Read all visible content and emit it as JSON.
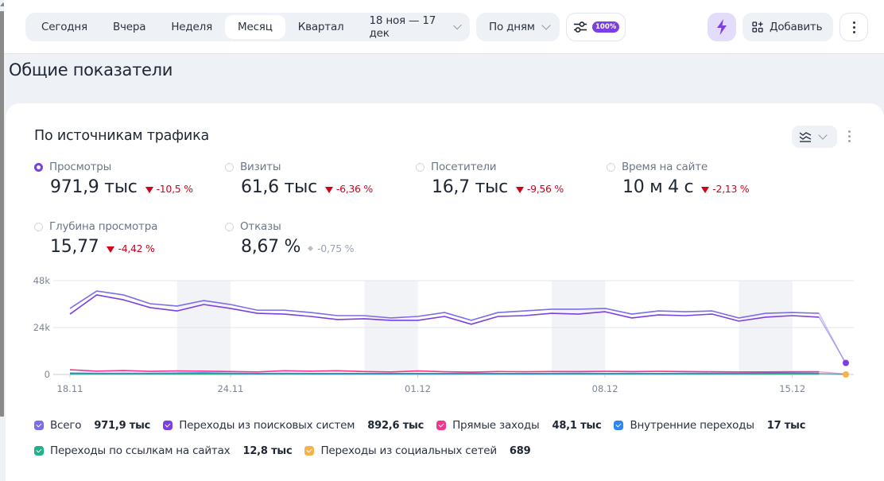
{
  "toolbar": {
    "periods": [
      "Сегодня",
      "Вчера",
      "Неделя",
      "Месяц",
      "Квартал"
    ],
    "active_period": "Месяц",
    "date_range": "18 ноя — 17 дек",
    "grouping": "По дням",
    "sampling_badge": "100%",
    "add_label": "Добавить"
  },
  "section_title": "Общие показатели",
  "card": {
    "title": "По источникам трафика",
    "metrics": [
      {
        "label": "Просмотры",
        "value": "971,9 тыс",
        "delta": "-10,5 %",
        "trend": "down",
        "selected": true
      },
      {
        "label": "Визиты",
        "value": "61,6 тыс",
        "delta": "-6,36 %",
        "trend": "down",
        "selected": false
      },
      {
        "label": "Посетители",
        "value": "16,7 тыс",
        "delta": "-9,56 %",
        "trend": "down",
        "selected": false
      },
      {
        "label": "Время на сайте",
        "value": "10 м 4 с",
        "delta": "-2,13 %",
        "trend": "down",
        "selected": false
      },
      {
        "label": "Глубина просмотра",
        "value": "15,77",
        "delta": "-4,42 %",
        "trend": "down",
        "selected": false
      },
      {
        "label": "Отказы",
        "value": "8,67 %",
        "delta": "-0,75 %",
        "trend": "neutral",
        "selected": false
      }
    ],
    "legend": [
      {
        "label": "Всего",
        "value": "971,9 тыс",
        "color": "#7a6fe6"
      },
      {
        "label": "Переходы из поисковых систем",
        "value": "892,6 тыс",
        "color": "#7b3fe4"
      },
      {
        "label": "Прямые заходы",
        "value": "48,1 тыс",
        "color": "#f0368f"
      },
      {
        "label": "Внутренние переходы",
        "value": "17 тыс",
        "color": "#2f86f0"
      },
      {
        "label": "Переходы по ссылкам на сайтах",
        "value": "12,8 тыс",
        "color": "#1fb28a"
      },
      {
        "label": "Переходы из социальных сетей",
        "value": "689",
        "color": "#f6b24a"
      }
    ]
  },
  "chart_data": {
    "type": "line",
    "title": "По источникам трафика",
    "xlabel": "",
    "ylabel": "Просмотры",
    "ylim": [
      0,
      48000
    ],
    "yticks": [
      0,
      24000,
      48000
    ],
    "ytick_labels": [
      "0",
      "24k",
      "48k"
    ],
    "x": [
      "18.11",
      "19.11",
      "20.11",
      "21.11",
      "22.11",
      "23.11",
      "24.11",
      "25.11",
      "26.11",
      "27.11",
      "28.11",
      "29.11",
      "30.11",
      "01.12",
      "02.12",
      "03.12",
      "04.12",
      "05.12",
      "06.12",
      "07.12",
      "08.12",
      "09.12",
      "10.12",
      "11.12",
      "12.12",
      "13.12",
      "14.12",
      "15.12",
      "16.12",
      "17.12"
    ],
    "xtick_labels": [
      "18.11",
      "24.11",
      "01.12",
      "08.12",
      "15.12"
    ],
    "weekend_bands": [
      [
        "22.11",
        "23.11"
      ],
      [
        "29.11",
        "30.11"
      ],
      [
        "06.12",
        "07.12"
      ],
      [
        "13.12",
        "14.12"
      ]
    ],
    "grid": true,
    "legend_position": "bottom",
    "series": [
      {
        "name": "Всего",
        "values": [
          33800,
          42700,
          40700,
          36200,
          35000,
          37800,
          35800,
          32900,
          32900,
          31700,
          30100,
          30100,
          28900,
          29700,
          31700,
          27700,
          31700,
          32500,
          33400,
          33400,
          33800,
          30900,
          32500,
          32100,
          32500,
          28900,
          31300,
          31700,
          31300,
          5300
        ]
      },
      {
        "name": "Переходы из поисковых систем",
        "values": [
          30900,
          40700,
          38200,
          34200,
          32500,
          35800,
          33800,
          31300,
          30900,
          29700,
          28100,
          28500,
          27700,
          27700,
          29700,
          25700,
          29700,
          30100,
          31300,
          30900,
          32100,
          28900,
          30500,
          30100,
          30900,
          27300,
          29300,
          30100,
          29300,
          5900
        ]
      },
      {
        "name": "Прямые заходы",
        "values": [
          2400,
          1700,
          2000,
          1600,
          1800,
          1700,
          1500,
          1300,
          1900,
          1700,
          1900,
          1500,
          1300,
          1800,
          1400,
          1200,
          1500,
          1400,
          1500,
          1500,
          1600,
          1500,
          1600,
          1500,
          1400,
          1300,
          1300,
          1400,
          1400,
          200
        ]
      },
      {
        "name": "Внутренние переходы",
        "values": [
          700,
          600,
          600,
          600,
          700,
          800,
          600,
          500,
          600,
          500,
          500,
          500,
          500,
          500,
          500,
          600,
          500,
          500,
          500,
          600,
          500,
          600,
          500,
          600,
          600,
          600,
          700,
          700,
          600,
          100
        ]
      },
      {
        "name": "Переходы по ссылкам на сайтах",
        "values": [
          400,
          400,
          400,
          400,
          400,
          400,
          400,
          400,
          400,
          400,
          400,
          400,
          400,
          400,
          400,
          400,
          400,
          400,
          400,
          400,
          400,
          400,
          400,
          400,
          400,
          400,
          400,
          400,
          400,
          50
        ]
      },
      {
        "name": "Переходы из социальных сетей",
        "values": [
          25,
          25,
          25,
          25,
          25,
          25,
          25,
          25,
          25,
          25,
          25,
          25,
          25,
          25,
          25,
          25,
          25,
          25,
          25,
          25,
          25,
          25,
          25,
          25,
          25,
          25,
          25,
          25,
          25,
          5
        ]
      }
    ]
  }
}
